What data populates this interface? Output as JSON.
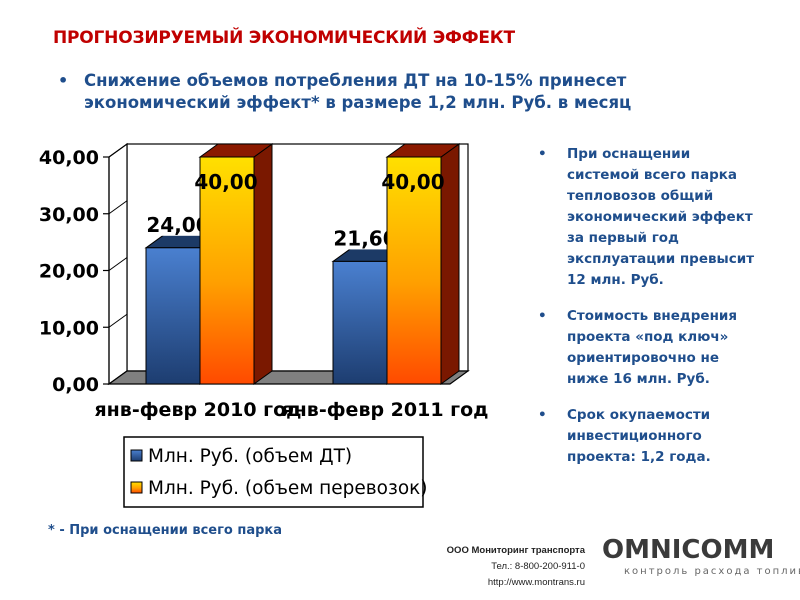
{
  "header": {
    "title": "ПРОГНОЗИРУЕМЫЙ ЭКОНОМИЧЕСКИЙ ЭФФЕКТ",
    "bullet": "Снижение объемов потребления ДТ на 10-15% принесет экономический эффект* в размере 1,2 млн. Руб. в месяц"
  },
  "side_notes": [
    "При оснащении системой всего парка тепловозов общий экономический эффект за первый год эксплуатации превысит 12 млн. Руб.",
    "Стоимость внедрения проекта «под ключ» ориентировочно не ниже 16 млн. Руб.",
    "Срок окупаемости инвестиционного проекта: 1,2 года."
  ],
  "footnote": "* - При оснащении всего парка",
  "company": {
    "name": "ООО Мониторинг транспорта",
    "phone": "Тел.: 8-800-200-911-0",
    "url": "http://www.montrans.ru"
  },
  "logo": {
    "word": "OMNICOMM",
    "tagline": "контроль расхода топлива"
  },
  "colors": {
    "title": "#c00000",
    "text": "#1f4e8c",
    "series_fuel": "#2f5fa8",
    "series_transport": "#ff8c00"
  },
  "chart_data": {
    "type": "bar",
    "categories": [
      "янв-февр 2010 год",
      "янв-февр 2011 год"
    ],
    "series": [
      {
        "name": "Млн. Руб. (объем ДТ)",
        "values": [
          24.0,
          21.6
        ],
        "labels": [
          "24,00",
          "21,60"
        ]
      },
      {
        "name": "Млн. Руб. (объем перевозок)",
        "values": [
          40.0,
          40.0
        ],
        "labels": [
          "40,00",
          "40,00"
        ]
      }
    ],
    "y_ticks": [
      "0,00",
      "10,00",
      "20,00",
      "30,00",
      "40,00"
    ],
    "ylim": [
      0,
      40
    ],
    "grid": false,
    "legend_position": "bottom",
    "style": "3d"
  }
}
